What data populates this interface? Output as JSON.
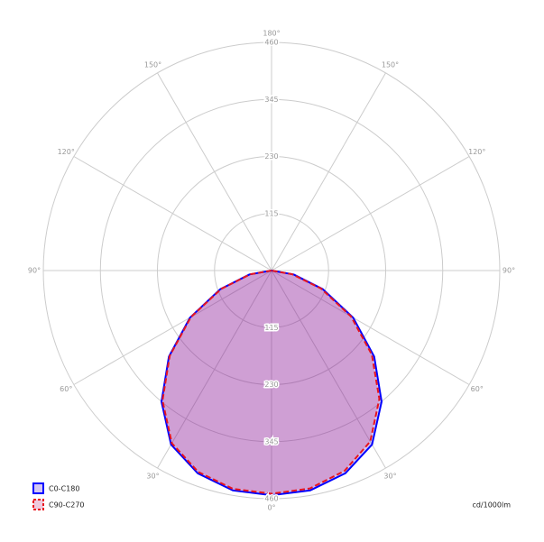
{
  "chart_data": {
    "type": "polar",
    "unit_label": "cd/1000lm",
    "x": [
      -90,
      -80,
      -70,
      -60,
      -50,
      -40,
      -30,
      -20,
      -10,
      0,
      10,
      20,
      30,
      40,
      50,
      60,
      70,
      80,
      90
    ],
    "series": [
      {
        "name": "C0-C180",
        "color": "#0000ff",
        "fill": "rgba(60,0,200,0.22)",
        "dashed": false,
        "values": [
          0,
          45,
          110,
          190,
          270,
          345,
          405,
          435,
          450,
          453,
          450,
          435,
          405,
          345,
          270,
          190,
          110,
          45,
          0
        ]
      },
      {
        "name": "C90-C270",
        "color": "#e8141e",
        "fill": "rgba(190,40,120,0.25)",
        "dashed": true,
        "values": [
          0,
          44,
          108,
          188,
          268,
          342,
          402,
          432,
          447,
          450,
          446,
          430,
          398,
          338,
          264,
          185,
          106,
          42,
          0
        ]
      }
    ],
    "rlim": [
      0,
      460
    ],
    "rticks": [
      115,
      230,
      345,
      460
    ],
    "angle_ticks": [
      {
        "value": 0,
        "label": "0°"
      },
      {
        "value": 30,
        "label": "30°"
      },
      {
        "value": 60,
        "label": "60°"
      },
      {
        "value": 90,
        "label": "90°"
      },
      {
        "value": 120,
        "label": "120°"
      },
      {
        "value": 150,
        "label": "150°"
      },
      {
        "value": 180,
        "label": "180°"
      },
      {
        "value": -150,
        "label": "150°"
      },
      {
        "value": -120,
        "label": "120°"
      },
      {
        "value": -90,
        "label": "90°"
      },
      {
        "value": -60,
        "label": "60°"
      },
      {
        "value": -30,
        "label": "30°"
      }
    ],
    "grid": true
  }
}
